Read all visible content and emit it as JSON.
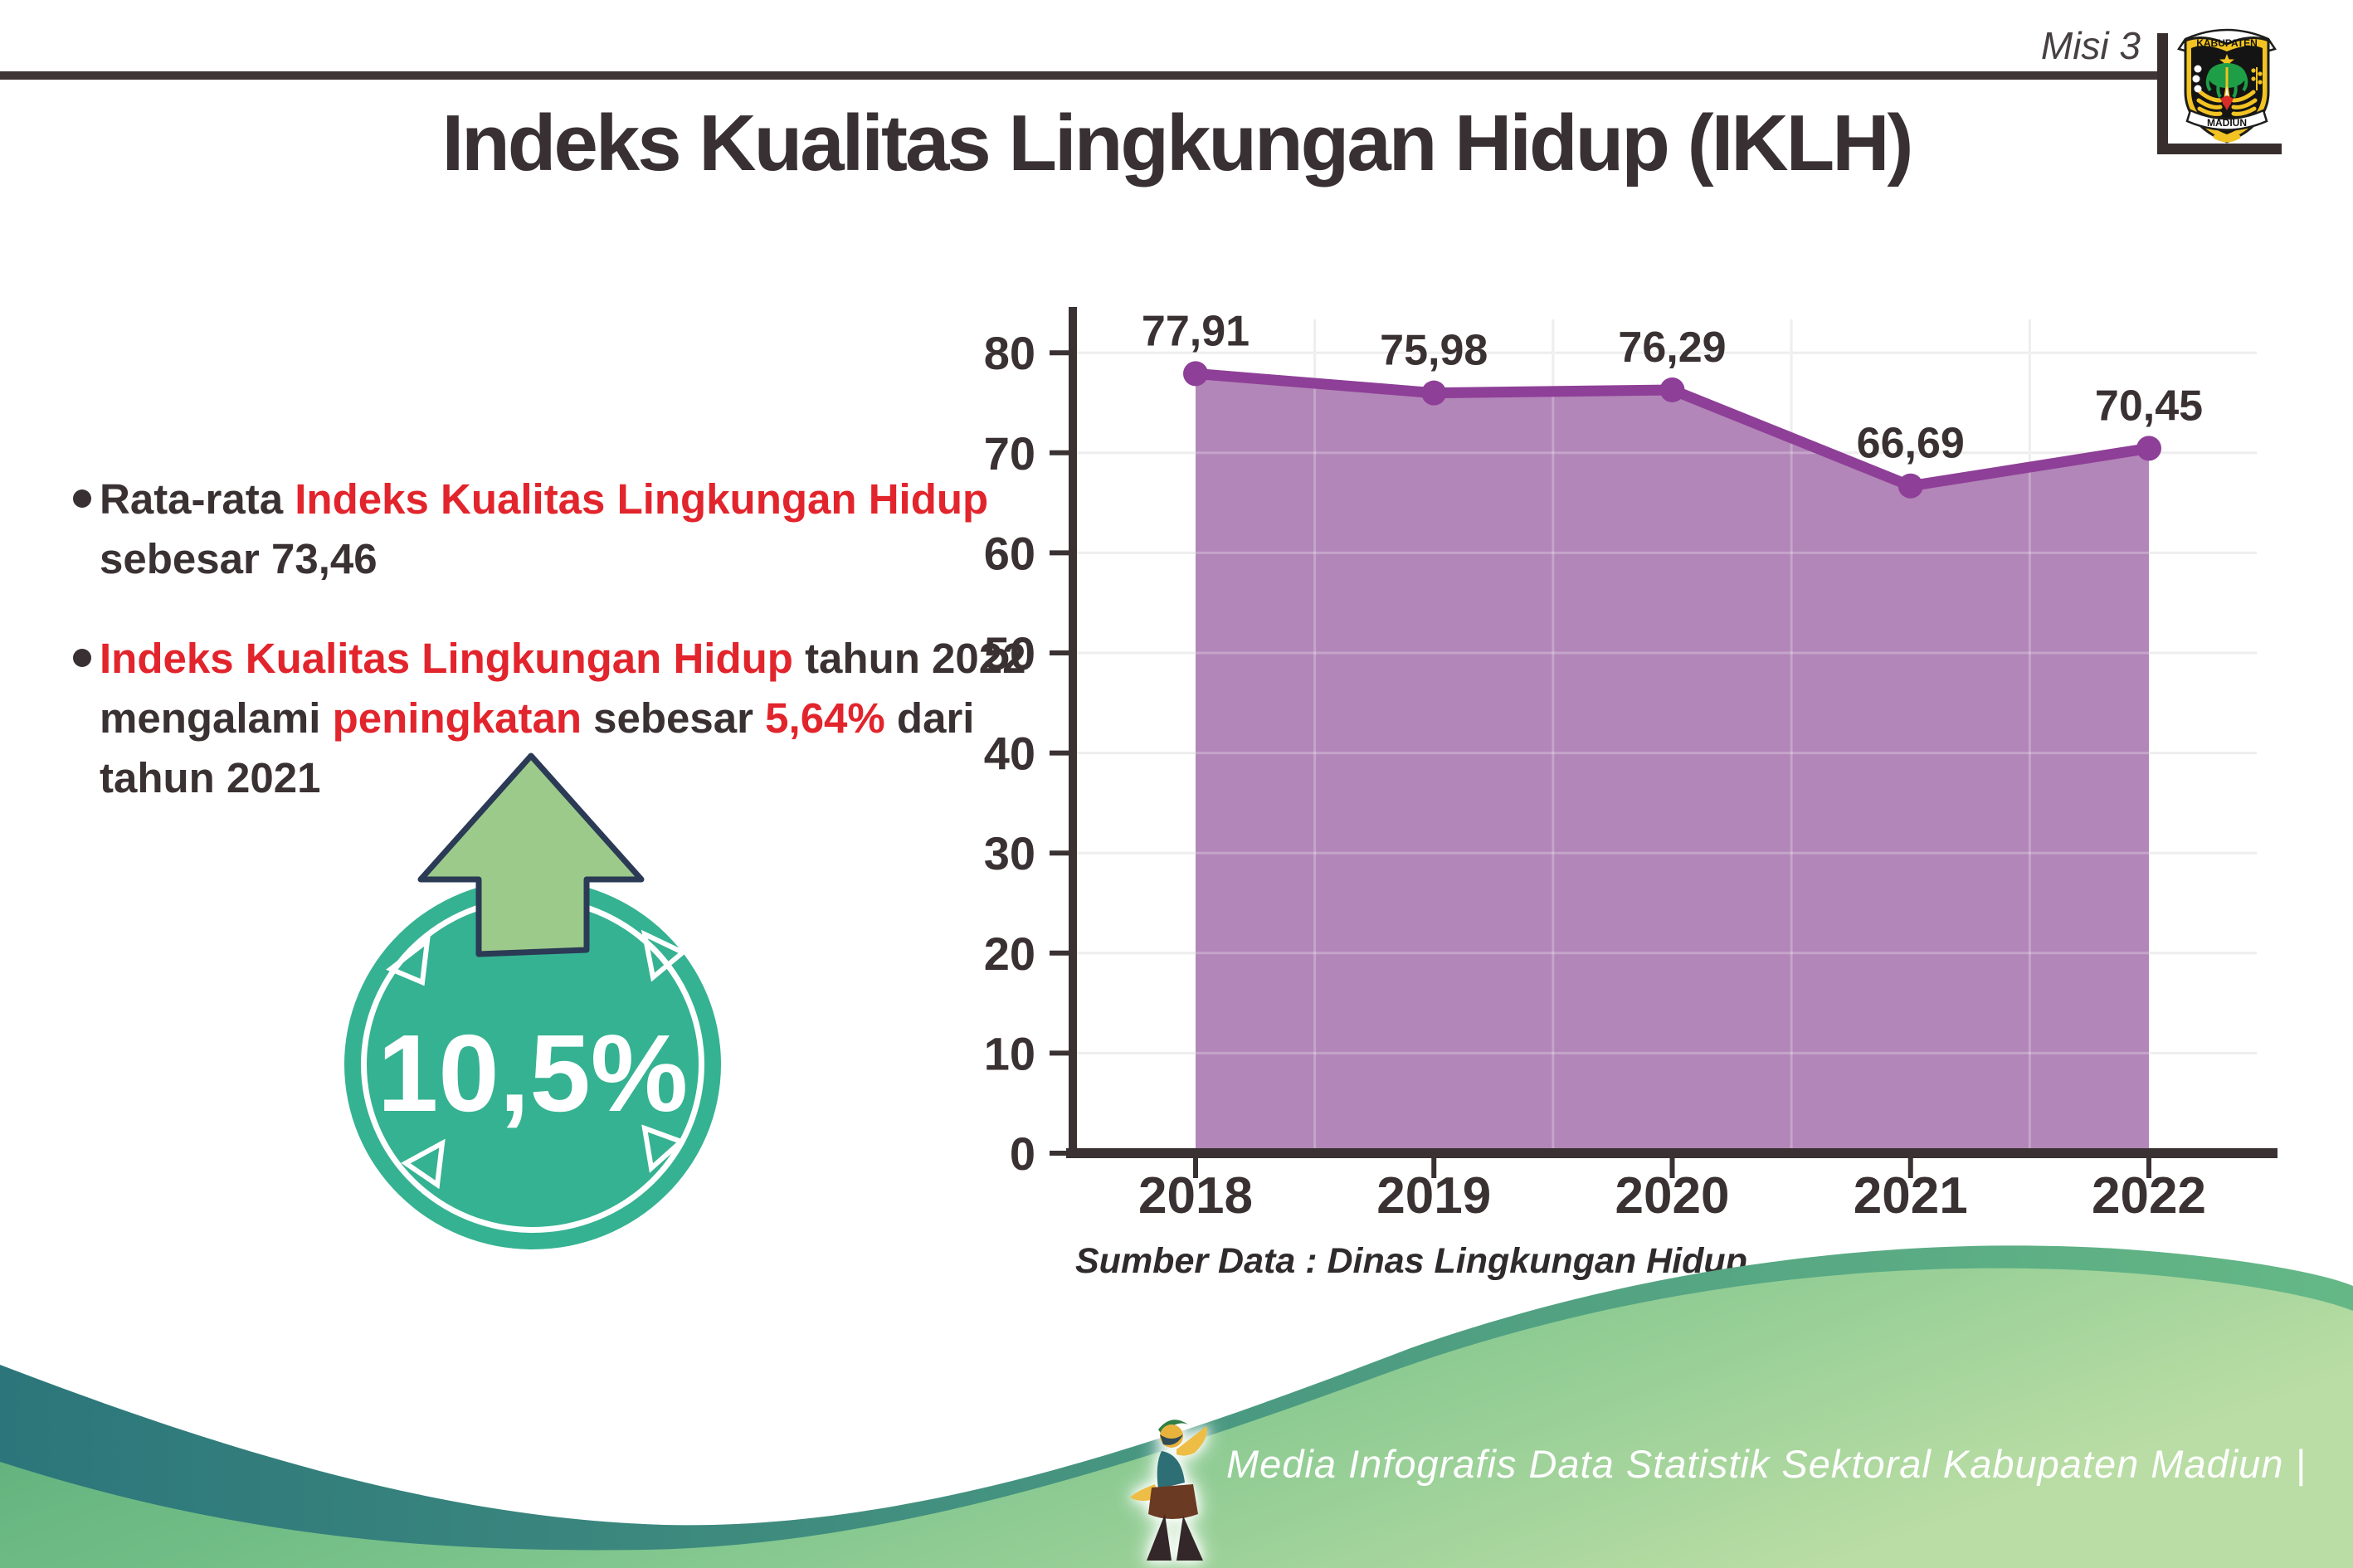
{
  "page": {
    "misi_label": "Misi 3",
    "title": "Indeks Kualitas Lingkungan Hidup (IKLH)"
  },
  "logo": {
    "top_text": "KABUPATEN",
    "bottom_text": "MADIUN"
  },
  "left_panel": {
    "bullets": [
      {
        "lines": [
          [
            {
              "t": "Rata-rata ",
              "c": "dark"
            },
            {
              "t": "Indeks Kualitas Lingkungan Hidup",
              "c": "red"
            }
          ],
          [
            {
              "t": "sebesar 73,46",
              "c": "dark"
            }
          ]
        ]
      },
      {
        "lines": [
          [
            {
              "t": "Indeks Kualitas Lingkungan Hidup",
              "c": "red"
            },
            {
              "t": " tahun 2022",
              "c": "dark"
            }
          ],
          [
            {
              "t": "mengalami ",
              "c": "dark"
            },
            {
              "t": "peningkatan",
              "c": "red"
            },
            {
              "t": " sebesar ",
              "c": "dark"
            },
            {
              "t": "5,64%",
              "c": "red"
            },
            {
              "t": " dari",
              "c": "dark"
            }
          ],
          [
            {
              "t": "tahun 2021",
              "c": "dark"
            }
          ]
        ]
      }
    ],
    "badge": {
      "value": "10,5%",
      "circle_color": "#35b292",
      "arrow_color": "#9cca8b"
    }
  },
  "chart_data": {
    "type": "area",
    "title": "",
    "xlabel": "",
    "ylabel": "",
    "categories": [
      "2018",
      "2019",
      "2020",
      "2021",
      "2022"
    ],
    "values": [
      77.91,
      75.98,
      76.29,
      66.69,
      70.45
    ],
    "labels": [
      "77,91",
      "75,98",
      "76,29",
      "66,69",
      "70,45"
    ],
    "ylim": [
      0,
      80
    ],
    "ytick_step": 10,
    "grid": true,
    "legend": false,
    "line_color": "#8e3f97",
    "fill_color": "#b286b8",
    "source_note": "Sumber Data : Dinas Lingkungan Hidup"
  },
  "footer": {
    "credit": "Media Infografis Data Statistik Sektoral Kabupaten Madiun |"
  },
  "colors": {
    "dark_text": "#3a3133",
    "red_accent": "#e2242c",
    "badge_teal": "#35b292",
    "arrow_green": "#9cca8b",
    "wave_teal_left": "#2c767b",
    "wave_teal_right": "#65b886",
    "wave_green_left": "#54a976",
    "wave_green_right": "#b9dda4"
  }
}
